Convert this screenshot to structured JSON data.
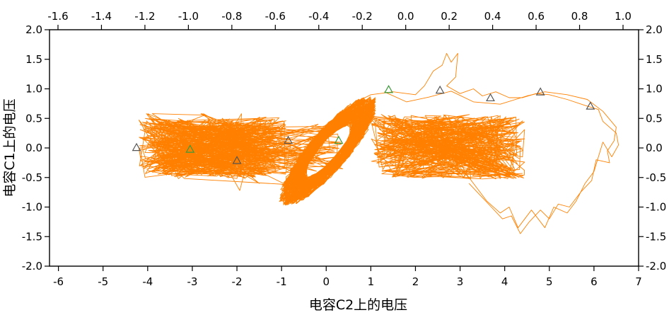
{
  "chart_data": {
    "type": "line",
    "title": "",
    "xlabel": "电容C2上的电压",
    "ylabel": "电容C1上的电压",
    "xlim": [
      -6.2,
      7
    ],
    "ylim": [
      -2.0,
      2.0
    ],
    "xlim_top": [
      -1.6,
      1.0
    ],
    "x_ticks": [
      "-6",
      "-5",
      "-4",
      "-3",
      "-2",
      "-1",
      "0",
      "1",
      "2",
      "3",
      "4",
      "5",
      "6",
      "7"
    ],
    "x_ticks_top": [
      "-1.6",
      "-1.4",
      "-1.2",
      "-1.0",
      "-0.8",
      "-0.6",
      "-0.4",
      "-0.2",
      "0.0",
      "0.2",
      "0.4",
      "0.6",
      "0.8",
      "1.0"
    ],
    "y_ticks": [
      "2.0",
      "1.5",
      "1.0",
      "0.5",
      "0.0",
      "-0.5",
      "-1.0",
      "-1.5",
      "-2.0"
    ],
    "y_ticks_right": [
      "2.0",
      "1.5",
      "1.0",
      "0.5",
      "0.0",
      "-0.5",
      "-1.0",
      "-1.5",
      "-2.0"
    ],
    "grid": false,
    "series_color": "#ff8000",
    "markers": [
      {
        "x": -4.25,
        "y": 0.0,
        "color": "#555555"
      },
      {
        "x": -3.05,
        "y": -0.03,
        "color": "#3a9a3a"
      },
      {
        "x": -2.0,
        "y": -0.22,
        "color": "#555555"
      },
      {
        "x": -0.85,
        "y": 0.12,
        "color": "#555555"
      },
      {
        "x": 0.28,
        "y": 0.12,
        "color": "#3a9a3a"
      },
      {
        "x": 1.4,
        "y": 0.98,
        "color": "#3a9a3a"
      },
      {
        "x": 2.55,
        "y": 0.97,
        "color": "#555555"
      },
      {
        "x": 3.68,
        "y": 0.84,
        "color": "#555555"
      },
      {
        "x": 4.8,
        "y": 0.94,
        "color": "#555555"
      },
      {
        "x": 5.92,
        "y": 0.7,
        "color": "#555555"
      }
    ]
  }
}
